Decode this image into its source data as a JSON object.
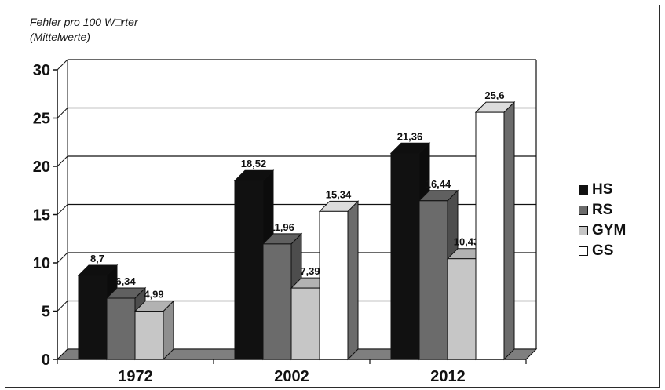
{
  "chart_data": {
    "type": "bar",
    "ylabel_line1": "Fehler pro 100 W□rter",
    "ylabel_line2": "(Mittelwerte)",
    "categories": [
      "1972",
      "2002",
      "2012"
    ],
    "ylim": [
      0,
      30
    ],
    "yticks": [
      0,
      5,
      10,
      15,
      20,
      25,
      30
    ],
    "ytick_labels": [
      "0",
      "5",
      "10",
      "15",
      "20",
      "25",
      "30"
    ],
    "grid": true,
    "legend_position": "right",
    "series": [
      {
        "name": "HS",
        "values": [
          8.7,
          18.52,
          21.36
        ],
        "labels": [
          "8,7",
          "18,52",
          "21,36"
        ],
        "color": "#111111"
      },
      {
        "name": "RS",
        "values": [
          6.34,
          11.96,
          16.44
        ],
        "labels": [
          "6,34",
          "11,96",
          "16,44"
        ],
        "color": "#6b6b6b"
      },
      {
        "name": "GYM",
        "values": [
          4.99,
          7.39,
          10.43
        ],
        "labels": [
          "4,99",
          "7,39",
          "10,43"
        ],
        "color": "#c6c6c6"
      },
      {
        "name": "GS",
        "values": [
          null,
          15.34,
          25.6
        ],
        "labels": [
          null,
          "15,34",
          "25,6"
        ],
        "color": "#ffffff"
      }
    ]
  }
}
